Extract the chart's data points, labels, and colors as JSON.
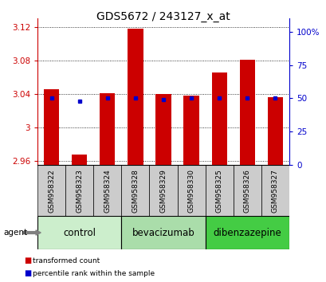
{
  "title": "GDS5672 / 243127_x_at",
  "samples": [
    "GSM958322",
    "GSM958323",
    "GSM958324",
    "GSM958328",
    "GSM958329",
    "GSM958330",
    "GSM958325",
    "GSM958326",
    "GSM958327"
  ],
  "transformed_counts": [
    3.045,
    2.967,
    3.041,
    3.118,
    3.04,
    3.038,
    3.065,
    3.081,
    3.036
  ],
  "percentile_ranks": [
    50,
    48,
    50,
    50,
    49,
    50,
    50,
    50,
    50
  ],
  "groups": [
    {
      "label": "control",
      "indices": [
        0,
        1,
        2
      ],
      "color": "#cceecc"
    },
    {
      "label": "bevacizumab",
      "indices": [
        3,
        4,
        5
      ],
      "color": "#aaddaa"
    },
    {
      "label": "dibenzazepine",
      "indices": [
        6,
        7,
        8
      ],
      "color": "#44cc44"
    }
  ],
  "ylim_left": [
    2.955,
    3.13
  ],
  "yticks_left": [
    2.96,
    3.0,
    3.04,
    3.08,
    3.12
  ],
  "ytick_labels_left": [
    "2.96",
    "3",
    "3.04",
    "3.08",
    "3.12"
  ],
  "ylim_right": [
    0,
    110
  ],
  "yticks_right": [
    0,
    25,
    50,
    75,
    100
  ],
  "ytick_labels_right": [
    "0",
    "25",
    "50",
    "75",
    "100%"
  ],
  "bar_color": "#cc0000",
  "dot_color": "#0000cc",
  "bar_width": 0.55,
  "legend_bar_label": "transformed count",
  "legend_dot_label": "percentile rank within the sample",
  "agent_label": "agent",
  "background_plot": "#ffffff",
  "background_sample": "#cccccc",
  "title_fontsize": 10,
  "tick_fontsize": 7.5,
  "sample_fontsize": 6.5,
  "group_fontsize": 8.5
}
